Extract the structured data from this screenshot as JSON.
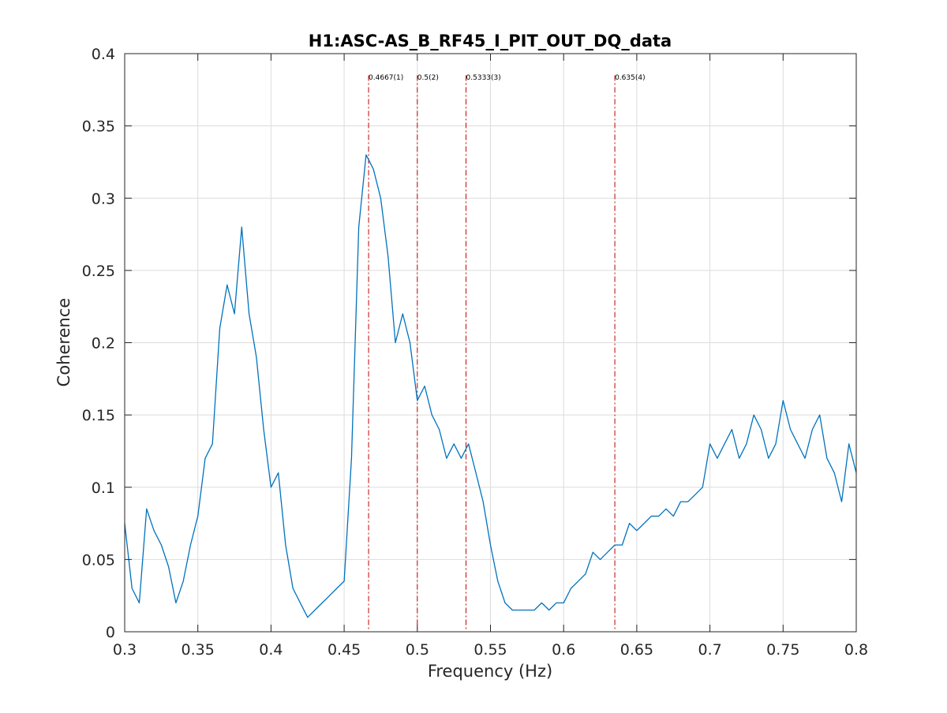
{
  "chart_data": {
    "type": "line",
    "title": "H1:ASC-AS_B_RF45_I_PIT_OUT_DQ_data",
    "xlabel": "Frequency (Hz)",
    "ylabel": "Coherence",
    "xlim": [
      0.3,
      0.8
    ],
    "ylim": [
      0,
      0.4
    ],
    "grid": true,
    "x_ticks": [
      0.3,
      0.35,
      0.4,
      0.45,
      0.5,
      0.55,
      0.6,
      0.65,
      0.7,
      0.75,
      0.8
    ],
    "x_tick_labels": [
      "0.3",
      "0.35",
      "0.4",
      "0.45",
      "0.5",
      "0.55",
      "0.6",
      "0.65",
      "0.7",
      "0.75",
      "0.8"
    ],
    "y_ticks": [
      0,
      0.05,
      0.1,
      0.15,
      0.2,
      0.25,
      0.3,
      0.35,
      0.4
    ],
    "y_tick_labels": [
      "0",
      "0.05",
      "0.1",
      "0.15",
      "0.2",
      "0.25",
      "0.3",
      "0.35",
      "0.4"
    ],
    "line_color": "#0072bd",
    "marker_color": "#c00000",
    "markers": [
      {
        "x": 0.4667,
        "label": "0.4667(1)"
      },
      {
        "x": 0.5,
        "label": "0.5(2)"
      },
      {
        "x": 0.5333,
        "label": "0.5333(3)"
      },
      {
        "x": 0.635,
        "label": "0.635(4)"
      }
    ],
    "series": [
      {
        "x": [
          0.3,
          0.305,
          0.31,
          0.315,
          0.32,
          0.325,
          0.33,
          0.335,
          0.34,
          0.345,
          0.35,
          0.355,
          0.36,
          0.365,
          0.37,
          0.375,
          0.38,
          0.385,
          0.39,
          0.395,
          0.4,
          0.405,
          0.41,
          0.415,
          0.42,
          0.425,
          0.43,
          0.435,
          0.44,
          0.445,
          0.45,
          0.455,
          0.46,
          0.465,
          0.47,
          0.475,
          0.48,
          0.485,
          0.49,
          0.495,
          0.5,
          0.505,
          0.51,
          0.515,
          0.52,
          0.525,
          0.53,
          0.535,
          0.54,
          0.545,
          0.55,
          0.555,
          0.56,
          0.565,
          0.57,
          0.575,
          0.58,
          0.585,
          0.59,
          0.595,
          0.6,
          0.605,
          0.61,
          0.615,
          0.62,
          0.625,
          0.63,
          0.635,
          0.64,
          0.645,
          0.65,
          0.655,
          0.66,
          0.665,
          0.67,
          0.675,
          0.68,
          0.685,
          0.69,
          0.695,
          0.7,
          0.705,
          0.71,
          0.715,
          0.72,
          0.725,
          0.73,
          0.735,
          0.74,
          0.745,
          0.75,
          0.755,
          0.76,
          0.765,
          0.77,
          0.775,
          0.78,
          0.785,
          0.79,
          0.795,
          0.8
        ],
        "values": [
          0.075,
          0.03,
          0.02,
          0.085,
          0.07,
          0.06,
          0.045,
          0.02,
          0.035,
          0.06,
          0.08,
          0.12,
          0.13,
          0.21,
          0.24,
          0.22,
          0.28,
          0.22,
          0.19,
          0.14,
          0.1,
          0.11,
          0.06,
          0.03,
          0.02,
          0.01,
          0.015,
          0.02,
          0.025,
          0.03,
          0.035,
          0.12,
          0.28,
          0.33,
          0.32,
          0.3,
          0.26,
          0.2,
          0.22,
          0.2,
          0.16,
          0.17,
          0.15,
          0.14,
          0.12,
          0.13,
          0.12,
          0.13,
          0.11,
          0.09,
          0.06,
          0.035,
          0.02,
          0.015,
          0.015,
          0.015,
          0.015,
          0.02,
          0.015,
          0.02,
          0.02,
          0.03,
          0.035,
          0.04,
          0.055,
          0.05,
          0.055,
          0.06,
          0.06,
          0.075,
          0.07,
          0.075,
          0.08,
          0.08,
          0.085,
          0.08,
          0.09,
          0.09,
          0.095,
          0.1,
          0.13,
          0.12,
          0.13,
          0.14,
          0.12,
          0.13,
          0.15,
          0.14,
          0.12,
          0.13,
          0.16,
          0.14,
          0.13,
          0.12,
          0.14,
          0.15,
          0.12,
          0.11,
          0.09,
          0.13,
          0.11
        ]
      }
    ]
  }
}
